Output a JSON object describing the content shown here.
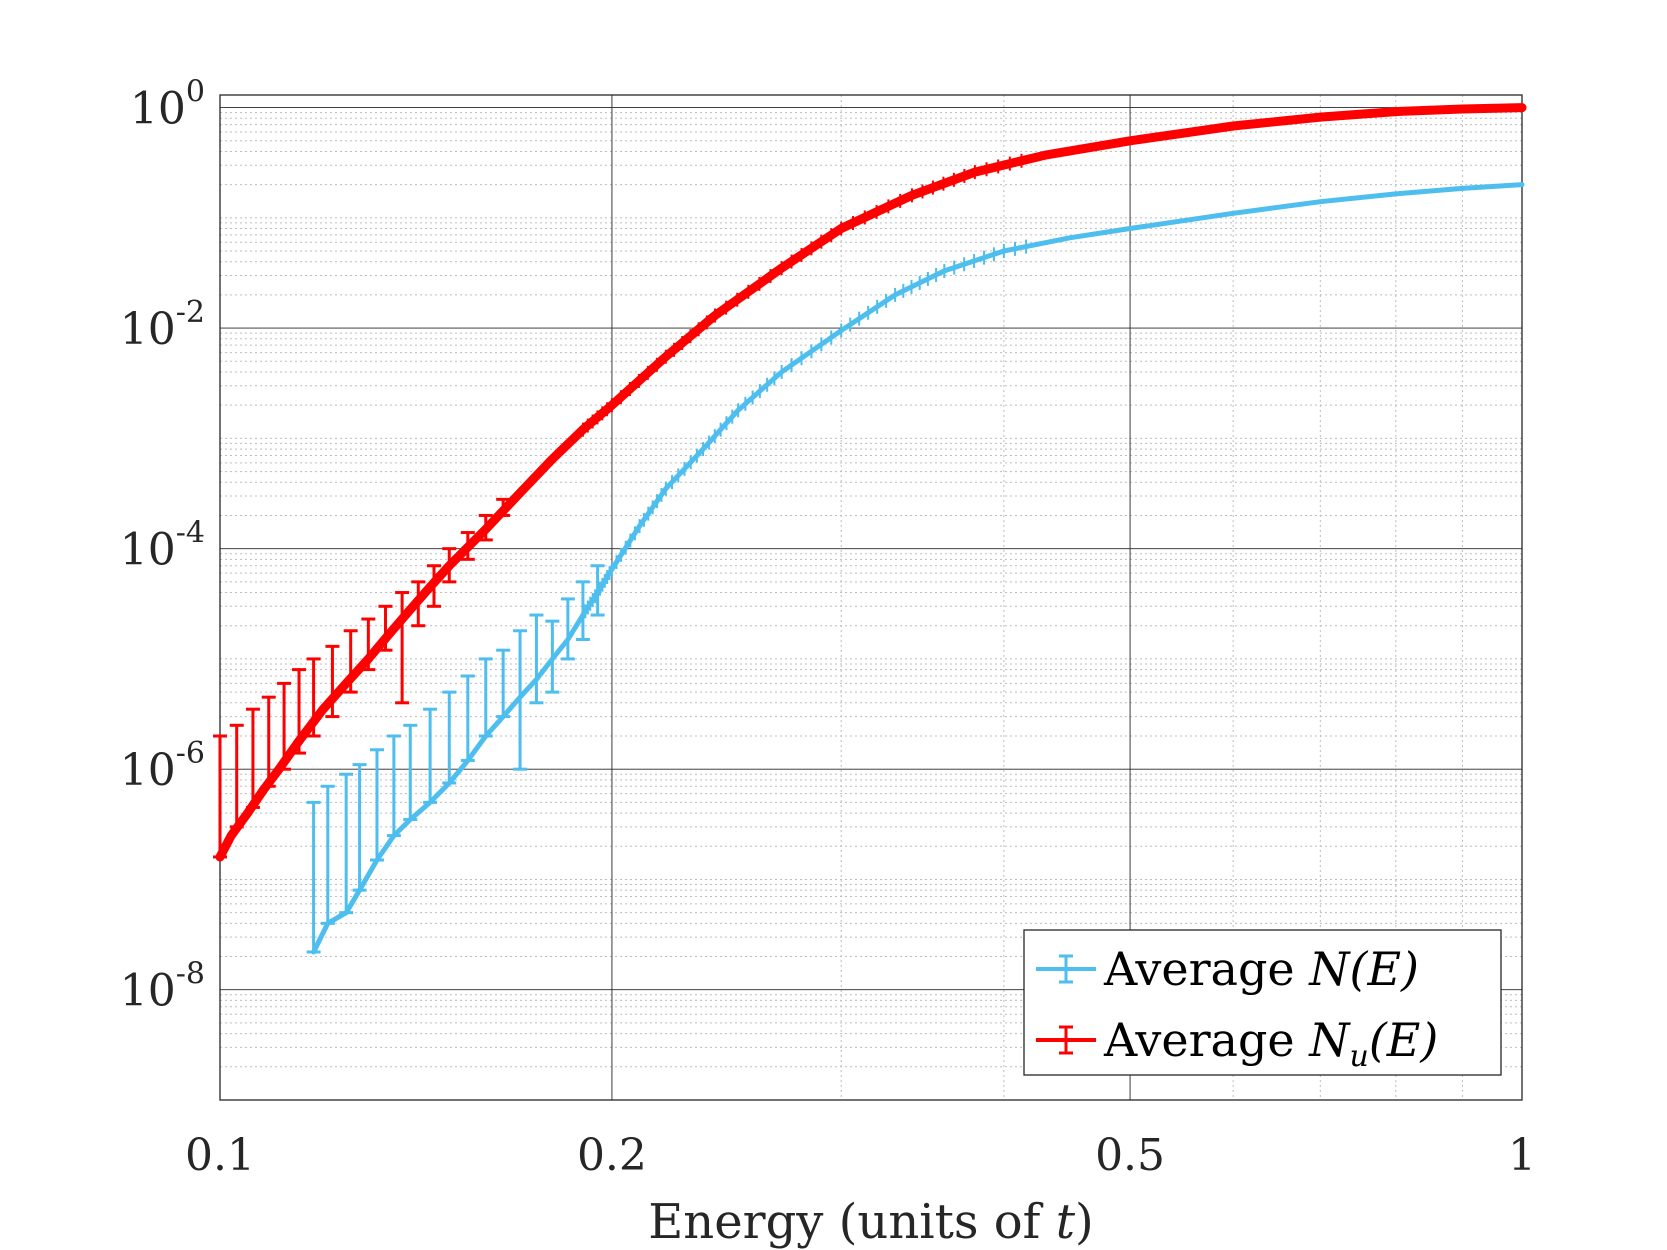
{
  "chart_data": {
    "type": "line",
    "title": "",
    "xlabel": "Energy (units of ",
    "xlabel_var": "t",
    "xlabel_close": ")",
    "ylabel": "",
    "x_scale": "log",
    "y_scale": "log",
    "xlim": [
      0.1,
      1
    ],
    "ylim": [
      1e-09,
      1.3
    ],
    "grid": true,
    "minor_grid": true,
    "x_ticks": [
      {
        "value": 0.1,
        "label": "0.1"
      },
      {
        "value": 0.2,
        "label": "0.2"
      },
      {
        "value": 0.5,
        "label": "0.5"
      },
      {
        "value": 1,
        "label": "1"
      }
    ],
    "y_ticks": [
      {
        "value": 1,
        "base": "10",
        "exp": "0"
      },
      {
        "value": 0.01,
        "base": "10",
        "exp": "-2"
      },
      {
        "value": 0.0001,
        "base": "10",
        "exp": "-4"
      },
      {
        "value": 1e-06,
        "base": "10",
        "exp": "-6"
      },
      {
        "value": 1e-08,
        "base": "10",
        "exp": "-8"
      }
    ],
    "legend_placement": "bottom-right",
    "series": [
      {
        "name": "Average N(E)",
        "legend_prefix": "Average ",
        "legend_math": "N(E)",
        "color": "#4DBEEE",
        "x": [
          0.118,
          0.121,
          0.125,
          0.128,
          0.132,
          0.136,
          0.14,
          0.145,
          0.15,
          0.155,
          0.16,
          0.165,
          0.17,
          0.175,
          0.18,
          0.185,
          0.19,
          0.195,
          0.2,
          0.21,
          0.22,
          0.235,
          0.25,
          0.27,
          0.3,
          0.33,
          0.36,
          0.4,
          0.45,
          0.5,
          0.6,
          0.7,
          0.8,
          0.9,
          1.0
        ],
        "y": [
          2.2e-08,
          4e-08,
          5e-08,
          8e-08,
          1.5e-07,
          2.5e-07,
          3.5e-07,
          5e-07,
          7.5e-07,
          1.2e-06,
          2e-06,
          3e-06,
          4.5e-06,
          6.5e-06,
          1e-05,
          1.5e-05,
          2.5e-05,
          4e-05,
          6.5e-05,
          0.00016,
          0.00035,
          0.0008,
          0.0018,
          0.004,
          0.0095,
          0.02,
          0.033,
          0.05,
          0.066,
          0.08,
          0.11,
          0.14,
          0.165,
          0.185,
          0.2
        ],
        "err_x": [
          0.118,
          0.121,
          0.125,
          0.128,
          0.132,
          0.136,
          0.14,
          0.145,
          0.15,
          0.155,
          0.16,
          0.165,
          0.17,
          0.175,
          0.18,
          0.185,
          0.19,
          0.195
        ],
        "err_lo": [
          2.2e-08,
          4e-08,
          5e-08,
          8e-08,
          1.5e-07,
          2.5e-07,
          3.5e-07,
          5e-07,
          7.5e-07,
          1.2e-06,
          2e-06,
          3e-06,
          1e-06,
          4e-06,
          5e-06,
          1e-05,
          1.5e-05,
          2.5e-05
        ],
        "err_hi": [
          5e-07,
          7e-07,
          9e-07,
          1.1e-06,
          1.5e-06,
          2e-06,
          2.5e-06,
          3.5e-06,
          5e-06,
          7e-06,
          1e-05,
          1.2e-05,
          1.8e-05,
          2.5e-05,
          2.2e-05,
          3.5e-05,
          5e-05,
          7e-05
        ]
      },
      {
        "name": "Average N_u(E)",
        "legend_prefix": "Average ",
        "legend_math": "N",
        "legend_sub": "u",
        "legend_math_tail": "(E)",
        "color": "#FF0000",
        "x": [
          0.1,
          0.102,
          0.105,
          0.108,
          0.111,
          0.115,
          0.12,
          0.125,
          0.13,
          0.135,
          0.14,
          0.145,
          0.15,
          0.16,
          0.17,
          0.18,
          0.19,
          0.2,
          0.22,
          0.24,
          0.27,
          0.3,
          0.34,
          0.38,
          0.43,
          0.5,
          0.6,
          0.7,
          0.8,
          0.9,
          1.0
        ],
        "y": [
          1.6e-07,
          2.5e-07,
          4e-07,
          6.5e-07,
          1e-06,
          1.8e-06,
          3.5e-06,
          6e-06,
          1e-05,
          1.7e-05,
          2.8e-05,
          4.5e-05,
          7e-05,
          0.00015,
          0.00032,
          0.00065,
          0.0012,
          0.002,
          0.0055,
          0.013,
          0.035,
          0.08,
          0.16,
          0.26,
          0.37,
          0.5,
          0.68,
          0.82,
          0.92,
          0.97,
          1.0
        ],
        "err_x": [
          0.1,
          0.103,
          0.106,
          0.109,
          0.112,
          0.115,
          0.118,
          0.122,
          0.126,
          0.13,
          0.134,
          0.138,
          0.142,
          0.146,
          0.15,
          0.155,
          0.16,
          0.165
        ],
        "err_lo": [
          1.6e-07,
          3e-07,
          4.5e-07,
          7e-07,
          1e-06,
          1.4e-06,
          2e-06,
          3e-06,
          5e-06,
          8e-06,
          1.2e-05,
          4e-06,
          2e-05,
          3e-05,
          5e-05,
          8e-05,
          0.00012,
          0.0002
        ],
        "err_hi": [
          2e-06,
          2.5e-06,
          3.5e-06,
          4.5e-06,
          6e-06,
          8e-06,
          1e-05,
          1.3e-05,
          1.8e-05,
          2.3e-05,
          3e-05,
          4e-05,
          5e-05,
          7e-05,
          0.0001,
          0.00014,
          0.0002,
          0.00028
        ]
      }
    ]
  }
}
